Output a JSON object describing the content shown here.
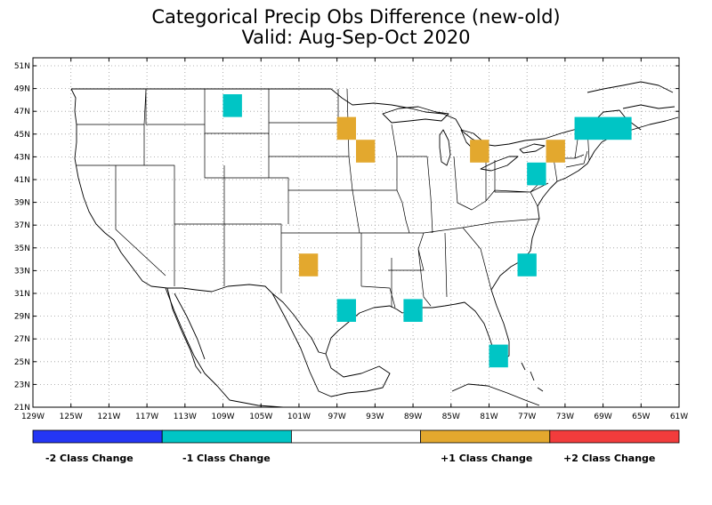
{
  "title": "Categorical Precip Obs Difference (new-old)",
  "subtitle": "Valid: Aug-Sep-Oct 2020",
  "map": {
    "lon_range": [
      -129,
      -61
    ],
    "lat_range": [
      21,
      52
    ],
    "lat_ticks": [
      "51N",
      "49N",
      "47N",
      "45N",
      "43N",
      "41N",
      "39N",
      "37N",
      "35N",
      "33N",
      "31N",
      "29N",
      "27N",
      "25N",
      "23N",
      "21N"
    ],
    "lon_ticks": [
      "129W",
      "125W",
      "121W",
      "117W",
      "113W",
      "109W",
      "105W",
      "101W",
      "97W",
      "93W",
      "89W",
      "85W",
      "81W",
      "77W",
      "73W",
      "69W",
      "65W",
      "61W"
    ],
    "grid": "dotted",
    "cells": [
      {
        "lon": -108,
        "lat": 47.5,
        "w": 2,
        "h": 2,
        "change": -1
      },
      {
        "lon": -96,
        "lat": 45.5,
        "w": 2,
        "h": 2,
        "change": 1
      },
      {
        "lon": -94,
        "lat": 43.5,
        "w": 2,
        "h": 2,
        "change": 1
      },
      {
        "lon": -82,
        "lat": 43.5,
        "w": 2,
        "h": 2,
        "change": 1
      },
      {
        "lon": -74,
        "lat": 43.5,
        "w": 2,
        "h": 2,
        "change": 1
      },
      {
        "lon": -76,
        "lat": 41.5,
        "w": 2,
        "h": 2,
        "change": -1
      },
      {
        "lon": -69,
        "lat": 45.5,
        "w": 6,
        "h": 2,
        "change": -1
      },
      {
        "lon": -100,
        "lat": 33.5,
        "w": 2,
        "h": 2,
        "change": 1
      },
      {
        "lon": -96,
        "lat": 29.5,
        "w": 2,
        "h": 2,
        "change": -1
      },
      {
        "lon": -89,
        "lat": 29.5,
        "w": 2,
        "h": 2,
        "change": -1
      },
      {
        "lon": -77,
        "lat": 33.5,
        "w": 2,
        "h": 2,
        "change": -1
      },
      {
        "lon": -80,
        "lat": 25.5,
        "w": 2,
        "h": 2,
        "change": -1
      }
    ]
  },
  "legend": {
    "colors": {
      "-2": "#2436f5",
      "-1": "#00c5c5",
      "0": "#ffffff",
      "1": "#e3a82e",
      "2": "#f23c3c"
    },
    "labels": [
      "-2 Class Change",
      "-1 Class Change",
      "+1 Class Change",
      "+2 Class Change"
    ]
  }
}
